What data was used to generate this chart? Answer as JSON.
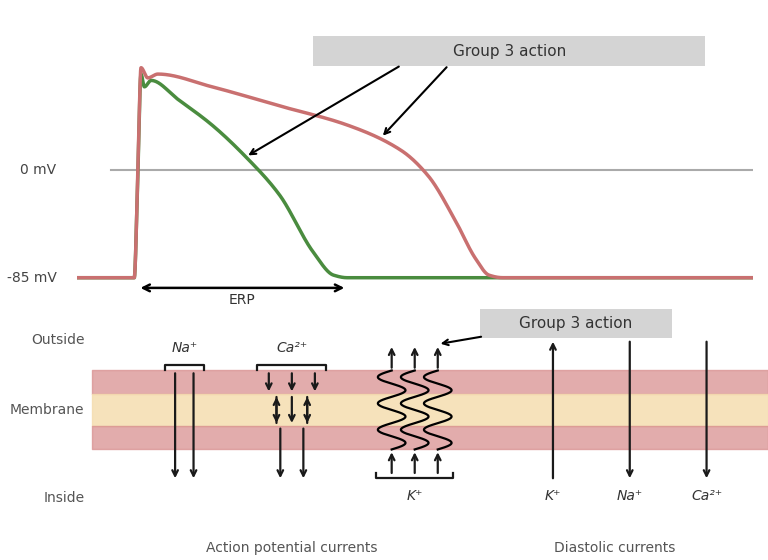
{
  "bg_color": "#ffffff",
  "top_panel": {
    "green_color": "#4a8c3f",
    "pink_color": "#c97070",
    "zero_line_color": "#aaaaaa",
    "zero_mv_label": "0 mV",
    "neg85_mv_label": "-85 mV",
    "erp_label": "ERP",
    "group3_label": "Group 3 action",
    "group3_box_color": "#d4d4d4"
  },
  "bottom_panel": {
    "outside_label": "Outside",
    "membrane_label": "Membrane",
    "inside_label": "Inside",
    "membrane_top_color": "#d99090",
    "membrane_mid_color": "#f5ddb0",
    "membrane_bot_color": "#d99090",
    "na_label": "Na⁺",
    "ca_label": "Ca²⁺",
    "k_label": "K⁺",
    "k_label2": "K⁺",
    "na_label2": "Na⁺",
    "ca_label2": "Ca²⁺",
    "action_label": "Action potential currents",
    "diastolic_label": "Diastolic currents",
    "group3_label": "Group 3 action",
    "arrow_color": "#1a1a1a",
    "text_color": "#555555"
  }
}
